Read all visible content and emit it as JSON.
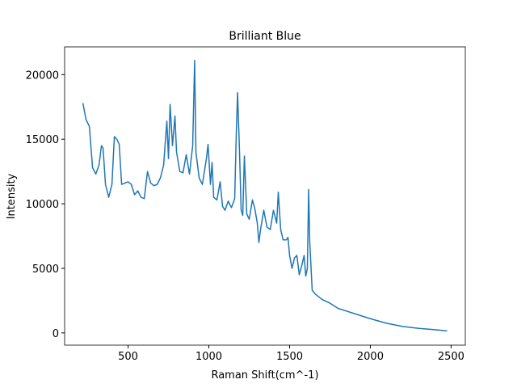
{
  "chart_data": {
    "type": "line",
    "title": "Brilliant Blue",
    "xlabel": "Raman Shift(cm^-1)",
    "ylabel": "Intensity",
    "xlim": [
      107,
      2588
    ],
    "ylim": [
      -950,
      22150
    ],
    "xticks": [
      500,
      1000,
      1500,
      2000,
      2500
    ],
    "yticks": [
      0,
      5000,
      10000,
      15000,
      20000
    ],
    "x": [
      220,
      240,
      260,
      280,
      300,
      320,
      335,
      345,
      360,
      380,
      400,
      415,
      430,
      445,
      460,
      480,
      500,
      520,
      540,
      560,
      580,
      600,
      620,
      640,
      660,
      680,
      700,
      720,
      740,
      750,
      760,
      775,
      790,
      800,
      820,
      840,
      860,
      880,
      900,
      912,
      920,
      940,
      960,
      985,
      995,
      1010,
      1020,
      1030,
      1050,
      1070,
      1085,
      1100,
      1120,
      1140,
      1160,
      1170,
      1178,
      1190,
      1200,
      1210,
      1220,
      1235,
      1250,
      1270,
      1285,
      1300,
      1310,
      1320,
      1340,
      1360,
      1380,
      1400,
      1420,
      1430,
      1445,
      1460,
      1480,
      1490,
      1500,
      1515,
      1530,
      1545,
      1560,
      1575,
      1590,
      1600,
      1610,
      1618,
      1625,
      1640,
      1660,
      1700,
      1750,
      1800,
      1850,
      1900,
      2000,
      2100,
      2200,
      2300,
      2400,
      2475
    ],
    "series": [
      {
        "name": "Brilliant Blue",
        "color": "#1f77b4",
        "values": [
          17800,
          16500,
          16000,
          12800,
          12300,
          13000,
          14500,
          14300,
          11500,
          10500,
          11500,
          15200,
          15000,
          14600,
          11500,
          11600,
          11700,
          11500,
          10700,
          11000,
          10500,
          10400,
          12500,
          11600,
          11400,
          11500,
          12000,
          13000,
          16400,
          13500,
          17700,
          14500,
          16800,
          14000,
          12500,
          12400,
          13800,
          12300,
          14500,
          21100,
          14000,
          12000,
          11500,
          13500,
          14600,
          11500,
          13200,
          10500,
          10300,
          11700,
          9800,
          9500,
          10200,
          9700,
          10400,
          15500,
          18600,
          14000,
          9500,
          9100,
          13700,
          9200,
          8800,
          10300,
          9600,
          8500,
          7000,
          8000,
          9500,
          8200,
          8000,
          9500,
          8500,
          10900,
          8000,
          7200,
          7200,
          7400,
          6000,
          5000,
          5800,
          6000,
          4500,
          5200,
          6000,
          4400,
          5000,
          11100,
          7000,
          3300,
          3000,
          2600,
          2300,
          1900,
          1700,
          1500,
          1100,
          750,
          500,
          350,
          250,
          150
        ]
      }
    ]
  }
}
